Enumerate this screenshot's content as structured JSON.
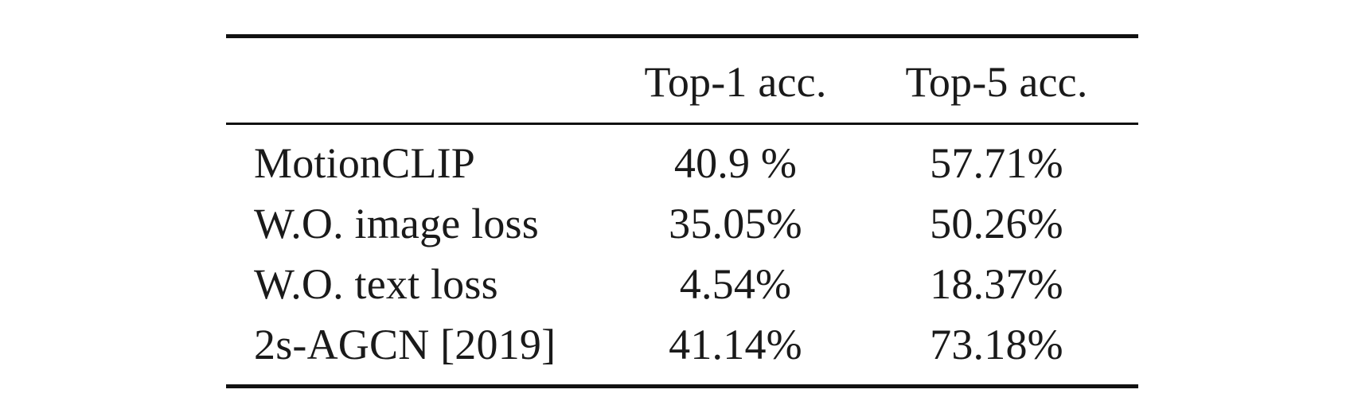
{
  "table": {
    "headers": {
      "method": "",
      "top1": "Top-1 acc.",
      "top5": "Top-5 acc."
    },
    "rows": [
      {
        "method": "MotionCLIP",
        "top1": "40.9 %",
        "top5": "57.71%"
      },
      {
        "method": "W.O. image loss",
        "top1": "35.05%",
        "top5": "50.26%"
      },
      {
        "method": "W.O. text loss",
        "top1": "4.54%",
        "top5": "18.37%"
      },
      {
        "method": "2s-AGCN [2019]",
        "top1": "41.14%",
        "top5": "73.18%"
      }
    ]
  }
}
